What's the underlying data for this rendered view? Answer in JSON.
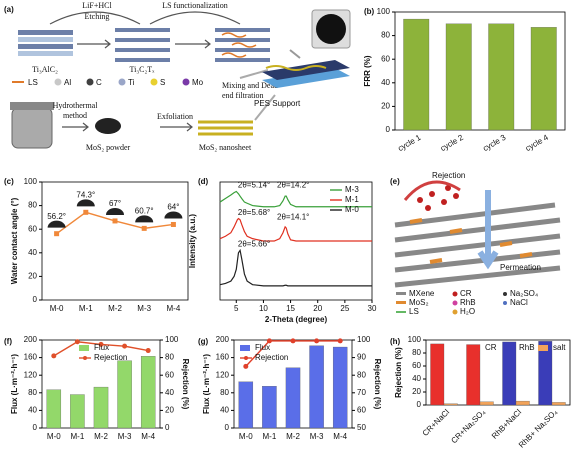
{
  "chart_data": [
    {
      "type": "bar",
      "label": "(b)",
      "ylabel": "FRR (%)",
      "categories": [
        "cycle 1",
        "cycle 2",
        "cycle 3",
        "cycle 4"
      ],
      "values": [
        94,
        90,
        90,
        87
      ],
      "color": "#8db33a",
      "ylim": [
        0,
        100
      ],
      "yticks": [
        0,
        20,
        40,
        60,
        80,
        100
      ]
    },
    {
      "type": "line",
      "label": "(c)",
      "ylabel": "Water contact angle (°)",
      "categories": [
        "M-0",
        "M-1",
        "M-2",
        "M-3",
        "M-4"
      ],
      "values": [
        56.2,
        74.3,
        67,
        60.7,
        64
      ],
      "value_labels": [
        "56.2°",
        "74.3°",
        "67°",
        "60.7°",
        "64°"
      ],
      "color": "#f0883a",
      "ylim": [
        0,
        100
      ],
      "yticks": [
        0,
        20,
        40,
        60,
        80,
        100
      ]
    },
    {
      "type": "line",
      "label": "(d)",
      "xlabel": "2-Theta (degree)",
      "ylabel": "Intensity (a.u.)",
      "x": [
        2,
        3,
        4,
        4.6,
        5,
        5.2,
        5.4,
        5.7,
        6,
        6.5,
        7,
        8,
        10,
        12,
        13,
        13.6,
        14,
        14.2,
        14.5,
        15,
        16,
        18,
        22,
        26,
        30
      ],
      "xlim": [
        2,
        30
      ],
      "xticks": [
        5,
        10,
        15,
        20,
        25,
        30
      ],
      "ylim": [
        0,
        1
      ],
      "legend": "upper right",
      "series": [
        {
          "name": "M-3",
          "color": "#3aa03a",
          "values": [
            0.83,
            0.86,
            0.89,
            0.91,
            0.92,
            0.91,
            0.9,
            0.88,
            0.86,
            0.83,
            0.82,
            0.8,
            0.79,
            0.79,
            0.8,
            0.84,
            0.88,
            0.88,
            0.85,
            0.81,
            0.79,
            0.79,
            0.79,
            0.79,
            0.79
          ]
        },
        {
          "name": "M-1",
          "color": "#e03020",
          "values": [
            0.52,
            0.54,
            0.57,
            0.62,
            0.66,
            0.68,
            0.69,
            0.68,
            0.64,
            0.58,
            0.54,
            0.52,
            0.5,
            0.5,
            0.52,
            0.57,
            0.62,
            0.61,
            0.56,
            0.51,
            0.5,
            0.5,
            0.5,
            0.5,
            0.5
          ]
        },
        {
          "name": "M-0",
          "color": "#222222",
          "values": [
            0.13,
            0.14,
            0.16,
            0.2,
            0.26,
            0.33,
            0.4,
            0.42,
            0.35,
            0.22,
            0.16,
            0.13,
            0.12,
            0.12,
            0.12,
            0.12,
            0.125,
            0.125,
            0.12,
            0.12,
            0.12,
            0.12,
            0.12,
            0.12,
            0.12
          ]
        }
      ],
      "annotations": [
        "2θ=5.14°",
        "2θ=14.2°",
        "2θ=5.68°",
        "2θ=14.1°",
        "2θ=5.66°"
      ]
    },
    {
      "type": "combo",
      "label": "(f)",
      "ylabel": "Flux (L·m⁻²·h⁻¹)",
      "y2label": "Rejection (%)",
      "categories": [
        "M-0",
        "M-1",
        "M-2",
        "M-3",
        "M-4"
      ],
      "ylim": [
        0,
        200
      ],
      "yticks": [
        0,
        40,
        80,
        120,
        160,
        200
      ],
      "y2lim": [
        0,
        100
      ],
      "y2ticks": [
        0,
        20,
        40,
        60,
        80,
        100
      ],
      "legend": "upper center",
      "series": [
        {
          "name": "Flux",
          "type": "bar",
          "color": "#93d86a",
          "values": [
            87,
            76,
            93,
            153,
            163
          ]
        },
        {
          "name": "Rejection",
          "type": "line",
          "axis": "y2",
          "color": "#e0502a",
          "values": [
            82,
            98,
            95,
            93,
            88
          ]
        }
      ]
    },
    {
      "type": "combo",
      "label": "(g)",
      "ylabel": "Flux (L·m⁻²·h⁻¹)",
      "y2label": "Rejection (%)",
      "categories": [
        "M-0",
        "M-1",
        "M-2",
        "M-3",
        "M-4"
      ],
      "ylim": [
        0,
        200
      ],
      "yticks": [
        0,
        40,
        80,
        120,
        160,
        200
      ],
      "y2lim": [
        50,
        100
      ],
      "y2ticks": [
        50,
        60,
        70,
        80,
        90,
        100
      ],
      "legend": "upper left",
      "series": [
        {
          "name": "Flux",
          "type": "bar",
          "color": "#5a6ee8",
          "values": [
            105,
            95,
            137,
            187,
            184
          ]
        },
        {
          "name": "Rejection",
          "type": "line",
          "axis": "y2",
          "color": "#e0402a",
          "values": [
            85,
            99.5,
            99.5,
            99.5,
            99.5
          ]
        }
      ]
    },
    {
      "type": "bar",
      "label": "(h)",
      "ylabel": "Rejection (%)",
      "categories": [
        "CR+NaCl",
        "CR+Na₂SO₄",
        "RhB+NaCl",
        "RhB+ Na₂SO₄"
      ],
      "ylim": [
        0,
        100
      ],
      "yticks": [
        0,
        20,
        40,
        60,
        80,
        100
      ],
      "legend": "upper right",
      "series": [
        {
          "name": "CR",
          "color": "#e8302c",
          "values": [
            94,
            93,
            null,
            null
          ]
        },
        {
          "name": "RhB",
          "color": "#3a3db8",
          "values": [
            null,
            null,
            97,
            98
          ]
        },
        {
          "name": "salt",
          "color": "#f2a35a",
          "values": [
            2,
            5,
            6,
            4
          ]
        }
      ]
    }
  ],
  "schematic_a": {
    "label": "(a)",
    "etchant": "LiF+HCl",
    "etching": "Etching",
    "functionalization": "LS functionalization",
    "max_phase": "Ti₃AlC₂",
    "mxene": "Ti₃C₂Tₓ",
    "legend": [
      "LS",
      "Al",
      "C",
      "Ti",
      "S",
      "Mo"
    ],
    "hydrothermal": [
      "Hydrothermal",
      "method"
    ],
    "powder": "MoS₂ powder",
    "exfoliation": "Exfoliation",
    "nanosheet": "MoS₂ nanosheet",
    "filtration": [
      "Mixing and Dead-",
      "end filtration"
    ],
    "support": "PES Support"
  },
  "schematic_e": {
    "label": "(e)",
    "rejection": "Rejection",
    "permeation": "Permeation",
    "legend": [
      "MXene",
      "CR",
      "Na₂SO₄",
      "MoS₂",
      "RhB",
      "NaCl",
      "LS",
      "H₂O"
    ]
  }
}
